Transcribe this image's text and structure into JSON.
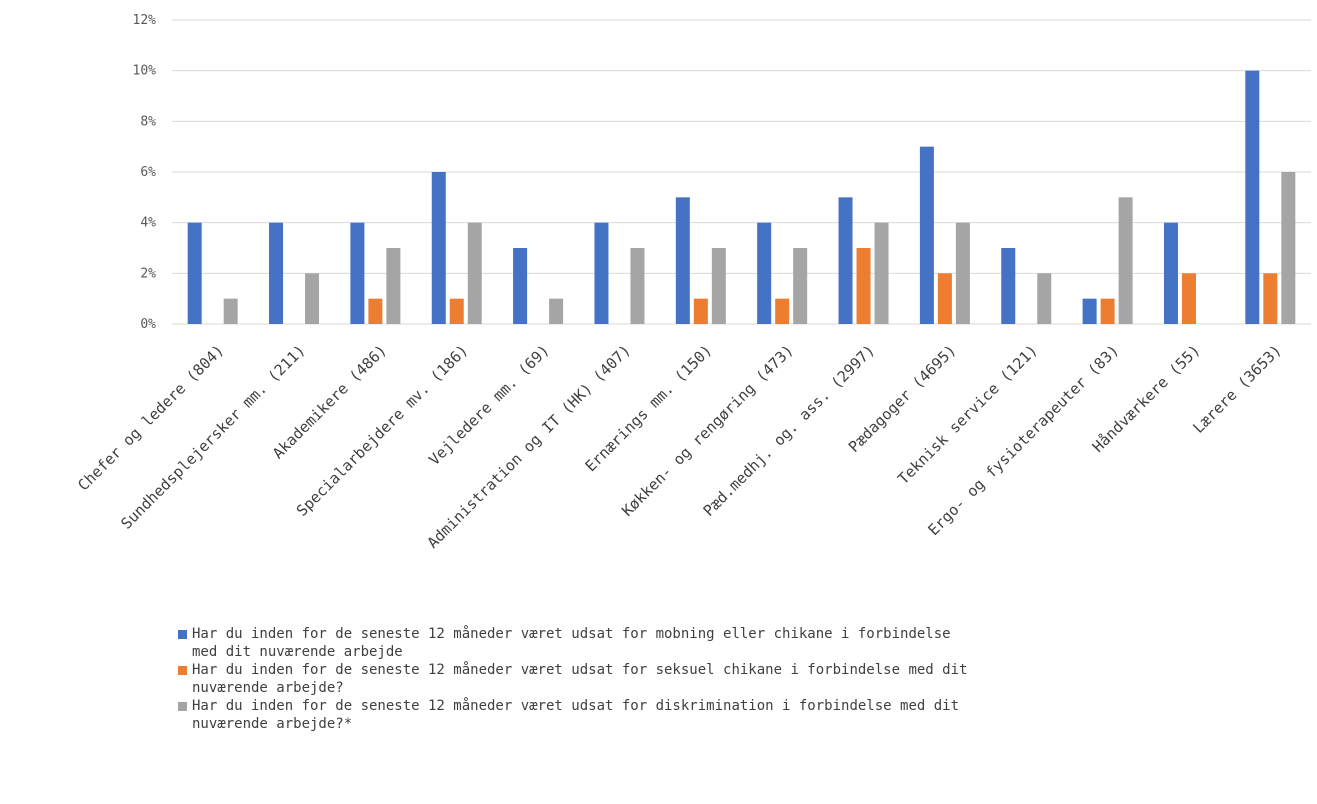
{
  "chart_data": {
    "type": "bar",
    "title": "",
    "xlabel": "",
    "ylabel": "",
    "ylim": [
      0,
      12
    ],
    "yticks": [
      "0%",
      "2%",
      "4%",
      "6%",
      "8%",
      "10%",
      "12%"
    ],
    "grid": true,
    "legend_position": "bottom",
    "categories": [
      "Chefer og ledere (804)",
      "Sundhedsplejersker mm. (211)",
      "Akademikere (486)",
      "Specialarbejdere mv. (186)",
      "Vejledere mm. (69)",
      "Administration og IT (HK) (407)",
      "Ernærings mm. (150)",
      "Køkken- og rengøring (473)",
      "Pæd.medhj. og. ass. (2997)",
      "Pædagoger (4695)",
      "Teknisk service (121)",
      "Ergo- og fysioterapeuter (83)",
      "Håndværkere (55)",
      "Lærere (3653)"
    ],
    "series": [
      {
        "name": "Har du inden for de seneste 12 måneder været udsat for mobning eller chikane i forbindelse\nmed dit nuværende arbejde",
        "color": "#4472c4",
        "values": [
          4,
          4,
          4,
          6,
          3,
          4,
          5,
          4,
          5,
          7,
          3,
          1,
          4,
          10
        ]
      },
      {
        "name": "Har du inden for de seneste 12 måneder været udsat for seksuel chikane i forbindelse med dit\nnuværende arbejde?",
        "color": "#ed7d31",
        "values": [
          0,
          0,
          1,
          1,
          0,
          0,
          1,
          1,
          3,
          2,
          0,
          1,
          2,
          2
        ]
      },
      {
        "name": "Har du inden for de seneste 12 måneder været udsat for diskrimination i forbindelse med dit\nnuværende arbejde?*",
        "color": "#a5a5a5",
        "values": [
          1,
          2,
          3,
          4,
          1,
          3,
          3,
          3,
          4,
          4,
          2,
          5,
          0,
          6
        ]
      }
    ]
  }
}
